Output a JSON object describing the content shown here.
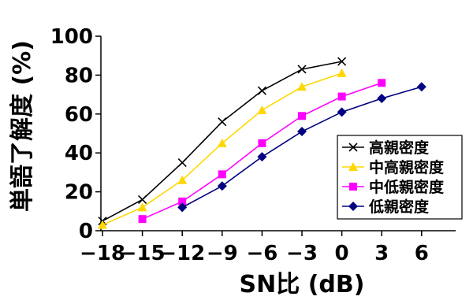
{
  "chart_data": {
    "type": "line",
    "title": "",
    "xlabel": "SN比 (dB)",
    "ylabel": "単語了解度 (%)",
    "x_ticks": [
      -18,
      -15,
      -12,
      -9,
      -6,
      -3,
      0,
      3,
      6
    ],
    "y_ticks": [
      0,
      20,
      40,
      60,
      80,
      100
    ],
    "xlim": [
      -19.5,
      6.9
    ],
    "ylim": [
      0,
      100
    ],
    "grid": false,
    "legend_position": "right",
    "series": [
      {
        "name": "高親密度",
        "color": "#000000",
        "marker": "x",
        "x": [
          -18,
          -15,
          -12,
          -9,
          -6,
          -3,
          0
        ],
        "y": [
          5,
          16,
          35,
          56,
          72,
          83,
          87
        ]
      },
      {
        "name": "中高親密度",
        "color": "#ffd700",
        "marker": "triangle",
        "x": [
          -18,
          -15,
          -12,
          -9,
          -6,
          -3,
          0
        ],
        "y": [
          3,
          12,
          26,
          45,
          62,
          74,
          81
        ]
      },
      {
        "name": "中低親密度",
        "color": "#ff00ff",
        "marker": "square",
        "x": [
          -15,
          -12,
          -9,
          -6,
          -3,
          0,
          3
        ],
        "y": [
          6,
          15,
          29,
          45,
          59,
          69,
          76
        ]
      },
      {
        "name": "低親密度",
        "color": "#000080",
        "marker": "diamond",
        "x": [
          -12,
          -9,
          -6,
          -3,
          0,
          3,
          6
        ],
        "y": [
          12,
          23,
          38,
          51,
          61,
          68,
          74
        ]
      }
    ]
  }
}
